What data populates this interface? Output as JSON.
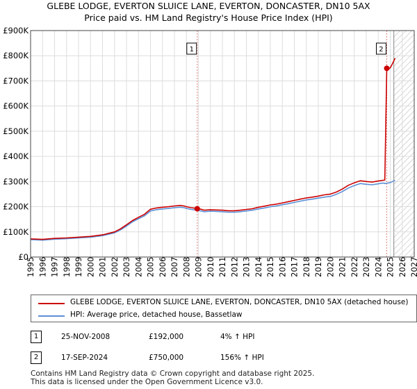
{
  "chart_data": {
    "type": "line",
    "title": "GLEBE LODGE, EVERTON SLUICE LANE, EVERTON, DONCASTER, DN10 5AX",
    "subtitle": "Price paid vs. HM Land Registry's House Price Index (HPI)",
    "xlabel": "",
    "ylabel": "",
    "xlim": [
      1995,
      2027
    ],
    "ylim": [
      0,
      900000
    ],
    "grid": true,
    "x_ticks": [
      "1995",
      "1996",
      "1997",
      "1998",
      "1999",
      "2000",
      "2001",
      "2002",
      "2003",
      "2004",
      "2005",
      "2006",
      "2007",
      "2008",
      "2009",
      "2010",
      "2011",
      "2012",
      "2013",
      "2014",
      "2015",
      "2016",
      "2017",
      "2018",
      "2019",
      "2020",
      "2021",
      "2022",
      "2023",
      "2024",
      "2025",
      "2026",
      "2027"
    ],
    "y_ticks": [
      {
        "value": 0,
        "label": "£0"
      },
      {
        "value": 100000,
        "label": "£100K"
      },
      {
        "value": 200000,
        "label": "£200K"
      },
      {
        "value": 300000,
        "label": "£300K"
      },
      {
        "value": 400000,
        "label": "£400K"
      },
      {
        "value": 500000,
        "label": "£500K"
      },
      {
        "value": 600000,
        "label": "£600K"
      },
      {
        "value": 700000,
        "label": "£700K"
      },
      {
        "value": 800000,
        "label": "£800K"
      },
      {
        "value": 900000,
        "label": "£900K"
      }
    ],
    "series": [
      {
        "name": "GLEBE LODGE, EVERTON SLUICE LANE, EVERTON, DONCASTER, DN10 5AX (detached house)",
        "color": "#cc0000",
        "x": [
          1995.0,
          1996.0,
          1997.0,
          1998.0,
          1999.0,
          2000.0,
          2001.0,
          2002.0,
          2002.5,
          2003.0,
          2003.5,
          2004.0,
          2004.5,
          2005.0,
          2005.5,
          2006.0,
          2006.5,
          2007.0,
          2007.5,
          2007.8,
          2008.0,
          2008.4,
          2008.6,
          2008.9,
          2009.2,
          2009.5,
          2010.0,
          2010.5,
          2011.0,
          2011.5,
          2012.0,
          2012.5,
          2013.0,
          2013.5,
          2014.0,
          2014.5,
          2015.0,
          2015.5,
          2016.0,
          2016.5,
          2017.0,
          2017.5,
          2018.0,
          2018.5,
          2019.0,
          2019.5,
          2020.0,
          2020.5,
          2021.0,
          2021.5,
          2022.0,
          2022.5,
          2023.0,
          2023.5,
          2024.0,
          2024.4,
          2024.55,
          2024.71,
          2024.8,
          2025.0,
          2025.2,
          2025.4
        ],
        "y": [
          72000,
          70000,
          74000,
          76000,
          79000,
          82000,
          88000,
          100000,
          112000,
          128000,
          145000,
          158000,
          170000,
          190000,
          195000,
          198000,
          200000,
          203000,
          205000,
          203000,
          200000,
          196000,
          195000,
          192000,
          190000,
          186000,
          188000,
          187000,
          186000,
          184000,
          184000,
          186000,
          189000,
          192000,
          198000,
          202000,
          207000,
          210000,
          215000,
          220000,
          225000,
          230000,
          235000,
          238000,
          242000,
          247000,
          250000,
          258000,
          270000,
          285000,
          295000,
          303000,
          300000,
          298000,
          302000,
          305000,
          306000,
          750000,
          745000,
          752000,
          770000,
          790000
        ]
      },
      {
        "name": "HPI: Average price, detached house, Bassetlaw",
        "color": "#5b8fd6",
        "x": [
          1995.0,
          1996.0,
          1997.0,
          1998.0,
          1999.0,
          2000.0,
          2001.0,
          2002.0,
          2002.5,
          2003.0,
          2003.5,
          2004.0,
          2004.5,
          2005.0,
          2005.5,
          2006.0,
          2006.5,
          2007.0,
          2007.5,
          2007.8,
          2008.0,
          2008.4,
          2008.6,
          2008.9,
          2009.2,
          2009.5,
          2010.0,
          2010.5,
          2011.0,
          2011.5,
          2012.0,
          2012.5,
          2013.0,
          2013.5,
          2014.0,
          2014.5,
          2015.0,
          2015.5,
          2016.0,
          2016.5,
          2017.0,
          2017.5,
          2018.0,
          2018.5,
          2019.0,
          2019.5,
          2020.0,
          2020.5,
          2021.0,
          2021.5,
          2022.0,
          2022.5,
          2023.0,
          2023.5,
          2024.0,
          2024.4,
          2024.55,
          2024.71,
          2024.8,
          2025.0,
          2025.2,
          2025.4
        ],
        "y": [
          69000,
          67000,
          71000,
          73000,
          76000,
          79000,
          85000,
          96000,
          108000,
          123000,
          140000,
          152000,
          164000,
          183000,
          188000,
          191000,
          193000,
          196000,
          198000,
          196000,
          193000,
          189000,
          188000,
          185000,
          183000,
          180000,
          182000,
          181000,
          180000,
          178000,
          178000,
          180000,
          183000,
          186000,
          191000,
          195000,
          200000,
          203000,
          208000,
          212000,
          217000,
          222000,
          227000,
          230000,
          234000,
          238000,
          241000,
          249000,
          260000,
          274000,
          284000,
          292000,
          289000,
          287000,
          291000,
          294000,
          292000,
          293000,
          294000,
          296000,
          300000,
          305000
        ]
      }
    ],
    "annotations": [
      {
        "label": "1",
        "x": 2008.9,
        "y": 192000
      },
      {
        "label": "2",
        "x": 2024.71,
        "y": 750000
      }
    ],
    "forecast_start_x": 2025.3
  },
  "legend": {
    "items": [
      {
        "label": "GLEBE LODGE, EVERTON SLUICE LANE, EVERTON, DONCASTER, DN10 5AX (detached house)",
        "color": "#cc0000"
      },
      {
        "label": "HPI: Average price, detached house, Bassetlaw",
        "color": "#5b8fd6"
      }
    ]
  },
  "transactions": [
    {
      "num": "1",
      "date": "25-NOV-2008",
      "price": "£192,000",
      "hpi": "4% ↑ HPI"
    },
    {
      "num": "2",
      "date": "17-SEP-2024",
      "price": "£750,000",
      "hpi": "156% ↑ HPI"
    }
  ],
  "footer": {
    "line1": "Contains HM Land Registry data © Crown copyright and database right 2025.",
    "line2": "This data is licensed under the Open Government Licence v3.0."
  }
}
